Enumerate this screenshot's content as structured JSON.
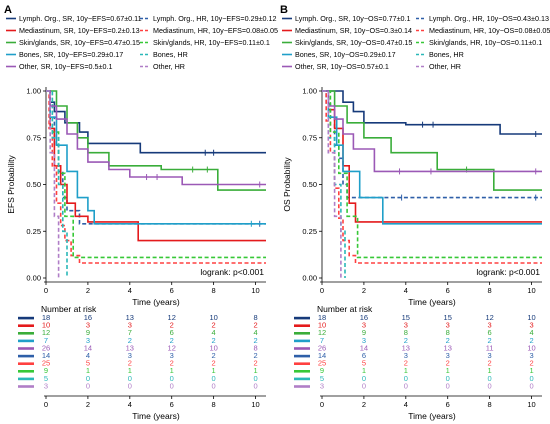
{
  "figure": {
    "series_meta": [
      {
        "key": "lymph_sr",
        "color": "#163a7a",
        "dash": false
      },
      {
        "key": "lymph_hr",
        "color": "#2e5fa8",
        "dash": true
      },
      {
        "key": "med_sr",
        "color": "#e41a1c",
        "dash": false
      },
      {
        "key": "med_hr",
        "color": "#ff4040",
        "dash": true
      },
      {
        "key": "skin_sr",
        "color": "#3aad3a",
        "dash": false
      },
      {
        "key": "skin_hr",
        "color": "#37c837",
        "dash": true
      },
      {
        "key": "bones_sr",
        "color": "#1f9fc9",
        "dash": false
      },
      {
        "key": "bones_hr",
        "color": "#2ab8b8",
        "dash": true
      },
      {
        "key": "other_sr",
        "color": "#9b59b6",
        "dash": false
      },
      {
        "key": "other_hr",
        "color": "#b07ec7",
        "dash": true
      }
    ],
    "risk_order": [
      "lymph_sr",
      "med_sr",
      "skin_sr",
      "bones_sr",
      "other_sr",
      "lymph_hr",
      "med_hr",
      "skin_hr",
      "bones_hr",
      "other_hr"
    ]
  },
  "chart_data": [
    {
      "panel": "A",
      "type": "line",
      "ylabel": "EFS Probability",
      "xlabel": "Time (years)",
      "xlim": [
        0,
        10.5
      ],
      "ylim": [
        0,
        1
      ],
      "xticks": [
        "0",
        "2",
        "4",
        "6",
        "8",
        "10"
      ],
      "yticks": [
        "0.00",
        "0.25",
        "0.50",
        "0.75",
        "1.00"
      ],
      "annotation": "logrank: p<0.001",
      "risk_title": "Number at risk",
      "risk_times": [
        0,
        2,
        4,
        6,
        8,
        10
      ],
      "legend": [
        "Lymph. Org., SR, 10y−EFS=0.67±0.11",
        "Lymph. Org., HR, 10y−EFS=0.29±0.12",
        "Mediastinum, SR, 10y−EFS=0.2±0.13",
        "Mediastinum, HR, 10y−EFS=0.08±0.05",
        "Skin/glands, SR, 10y−EFS=0.47±0.15",
        "Skin/glands, HR, 10y−EFS=0.11±0.1",
        "Bones, SR, 10y−EFS=0.29±0.17",
        "Bones, HR",
        "Other, SR, 10y−EFS=0.5±0.1",
        "Other, HR"
      ],
      "series": [
        {
          "key": "lymph_sr",
          "x": [
            0,
            0.2,
            0.4,
            0.9,
            1.6,
            2.0,
            4.5,
            10.5
          ],
          "y": [
            1,
            0.94,
            0.89,
            0.83,
            0.78,
            0.72,
            0.67,
            0.67
          ],
          "censor": [
            [
              7.6,
              0.67
            ],
            [
              8.0,
              0.67
            ]
          ]
        },
        {
          "key": "lymph_hr",
          "x": [
            0,
            0.2,
            0.4,
            0.6,
            0.8,
            1.0,
            1.6,
            10.5
          ],
          "y": [
            1,
            0.86,
            0.71,
            0.57,
            0.43,
            0.36,
            0.29,
            0.29
          ],
          "censor": [
            [
              10.2,
              0.29
            ]
          ]
        },
        {
          "key": "med_sr",
          "x": [
            0,
            0.2,
            0.4,
            0.7,
            1.0,
            1.4,
            2.0,
            4.4,
            10.5
          ],
          "y": [
            1,
            0.8,
            0.6,
            0.5,
            0.4,
            0.33,
            0.3,
            0.2,
            0.2
          ],
          "censor": []
        },
        {
          "key": "med_hr",
          "x": [
            0,
            0.15,
            0.3,
            0.5,
            0.7,
            0.9,
            1.2,
            1.6,
            10.5
          ],
          "y": [
            1,
            0.8,
            0.6,
            0.4,
            0.28,
            0.2,
            0.12,
            0.08,
            0.08
          ],
          "censor": []
        },
        {
          "key": "skin_sr",
          "x": [
            0,
            0.5,
            1.0,
            1.5,
            2.0,
            3.0,
            5.5,
            8.2,
            10.5
          ],
          "y": [
            1,
            0.92,
            0.83,
            0.75,
            0.67,
            0.6,
            0.58,
            0.47,
            0.47
          ],
          "censor": [
            [
              7.0,
              0.58
            ],
            [
              7.7,
              0.58
            ]
          ]
        },
        {
          "key": "skin_hr",
          "x": [
            0,
            0.3,
            0.6,
            0.9,
            1.3,
            10.5
          ],
          "y": [
            1,
            0.78,
            0.56,
            0.33,
            0.11,
            0.11
          ],
          "censor": []
        },
        {
          "key": "bones_sr",
          "x": [
            0,
            0.2,
            0.5,
            1.0,
            1.5,
            2.0,
            2.3,
            10.5
          ],
          "y": [
            1,
            0.86,
            0.71,
            0.57,
            0.43,
            0.36,
            0.29,
            0.29
          ],
          "censor": [
            [
              9.8,
              0.29
            ]
          ]
        },
        {
          "key": "bones_hr",
          "x": [
            0,
            0.3,
            0.6,
            0.8,
            1.0
          ],
          "y": [
            1,
            0.75,
            0.5,
            0.25,
            0.0
          ],
          "censor": []
        },
        {
          "key": "other_sr",
          "x": [
            0,
            0.2,
            0.5,
            1.0,
            1.5,
            2.0,
            3.0,
            4.0,
            6.5,
            10.5
          ],
          "y": [
            1,
            0.92,
            0.85,
            0.77,
            0.69,
            0.62,
            0.58,
            0.54,
            0.5,
            0.5
          ],
          "censor": [
            [
              4.8,
              0.54
            ],
            [
              5.3,
              0.54
            ],
            [
              10.2,
              0.5
            ]
          ]
        },
        {
          "key": "other_hr",
          "x": [
            0,
            0.2,
            0.4,
            0.6
          ],
          "y": [
            1,
            0.67,
            0.33,
            0.0
          ],
          "censor": []
        }
      ],
      "risk": [
        [
          "18",
          "16",
          "13",
          "12",
          "10",
          "8"
        ],
        [
          "10",
          "3",
          "3",
          "2",
          "2",
          "2"
        ],
        [
          "12",
          "9",
          "7",
          "6",
          "4",
          "4"
        ],
        [
          "7",
          "3",
          "2",
          "2",
          "2",
          "2"
        ],
        [
          "26",
          "14",
          "13",
          "12",
          "10",
          "8"
        ],
        [
          "14",
          "4",
          "3",
          "3",
          "2",
          "2"
        ],
        [
          "25",
          "5",
          "2",
          "2",
          "2",
          "2"
        ],
        [
          "9",
          "1",
          "1",
          "1",
          "1",
          "1"
        ],
        [
          "5",
          "0",
          "0",
          "0",
          "0",
          "0"
        ],
        [
          "3",
          "0",
          "0",
          "0",
          "0",
          "0"
        ]
      ]
    },
    {
      "panel": "B",
      "type": "line",
      "ylabel": "OS Probability",
      "xlabel": "Time (years)",
      "xlim": [
        0,
        10.5
      ],
      "ylim": [
        0,
        1
      ],
      "xticks": [
        "0",
        "2",
        "4",
        "6",
        "8",
        "10"
      ],
      "yticks": [
        "0.00",
        "0.25",
        "0.50",
        "0.75",
        "1.00"
      ],
      "annotation": "logrank: p<0.001",
      "risk_title": "Number at risk",
      "risk_times": [
        0,
        2,
        4,
        6,
        8,
        10
      ],
      "legend": [
        "Lymph. Org., SR, 10y−OS=0.77±0.1",
        "Lymph. Org., HR, 10y−OS=0.43±0.13",
        "Mediastinum, SR, 10y−OS=0.3±0.14",
        "Mediastinum, HR, 10y−OS=0.08±0.05",
        "Skin/glands, SR, 10y−OS=0.47±0.15",
        "Skin/glands, HR, 10y−OS=0.11±0.1",
        "Bones, SR, 10y−OS=0.29±0.17",
        "Bones, HR",
        "Other, SR, 10y−OS=0.57±0.1",
        "Other, HR"
      ],
      "series": [
        {
          "key": "lymph_sr",
          "x": [
            0,
            1.0,
            1.5,
            2.0,
            4.0,
            8.5,
            10.5
          ],
          "y": [
            1,
            0.94,
            0.89,
            0.83,
            0.82,
            0.77,
            0.77
          ],
          "censor": [
            [
              4.8,
              0.82
            ],
            [
              5.3,
              0.82
            ],
            [
              10.2,
              0.77
            ]
          ]
        },
        {
          "key": "lymph_hr",
          "x": [
            0,
            0.2,
            0.4,
            0.6,
            0.8,
            1.0,
            1.2,
            10.5
          ],
          "y": [
            1,
            0.93,
            0.86,
            0.71,
            0.64,
            0.5,
            0.43,
            0.43
          ],
          "censor": [
            [
              3.8,
              0.43
            ],
            [
              10.2,
              0.43
            ]
          ]
        },
        {
          "key": "med_sr",
          "x": [
            0,
            0.3,
            0.6,
            1.0,
            1.3,
            1.6,
            10.5
          ],
          "y": [
            1,
            0.9,
            0.8,
            0.6,
            0.4,
            0.3,
            0.3
          ],
          "censor": []
        },
        {
          "key": "med_hr",
          "x": [
            0,
            0.2,
            0.4,
            0.6,
            0.8,
            1.0,
            1.3,
            1.6,
            10.5
          ],
          "y": [
            1,
            0.84,
            0.68,
            0.48,
            0.32,
            0.2,
            0.12,
            0.08,
            0.08
          ],
          "censor": []
        },
        {
          "key": "skin_sr",
          "x": [
            0,
            0.6,
            1.2,
            2.0,
            3.3,
            5.5,
            8.2,
            10.5
          ],
          "y": [
            1,
            0.92,
            0.83,
            0.75,
            0.67,
            0.58,
            0.47,
            0.47
          ],
          "censor": [
            [
              6.9,
              0.58
            ]
          ]
        },
        {
          "key": "skin_hr",
          "x": [
            0,
            0.4,
            0.8,
            1.2,
            1.7,
            10.5
          ],
          "y": [
            1,
            0.78,
            0.56,
            0.33,
            0.11,
            0.11
          ],
          "censor": []
        },
        {
          "key": "bones_sr",
          "x": [
            0,
            0.3,
            0.7,
            1.0,
            1.8,
            2.9,
            10.5
          ],
          "y": [
            1,
            0.86,
            0.71,
            0.57,
            0.43,
            0.29,
            0.29
          ],
          "censor": []
        },
        {
          "key": "bones_hr",
          "x": [
            0,
            0.3,
            0.6,
            0.9,
            1.1
          ],
          "y": [
            1,
            0.75,
            0.5,
            0.25,
            0.0
          ],
          "censor": []
        },
        {
          "key": "other_sr",
          "x": [
            0,
            0.3,
            0.6,
            1.0,
            1.5,
            2.5,
            10.5
          ],
          "y": [
            1,
            0.92,
            0.85,
            0.77,
            0.69,
            0.57,
            0.57
          ],
          "censor": [
            [
              3.7,
              0.57
            ],
            [
              5.2,
              0.57
            ],
            [
              10.2,
              0.57
            ]
          ]
        },
        {
          "key": "other_hr",
          "x": [
            0,
            0.3,
            0.6,
            0.9
          ],
          "y": [
            1,
            0.67,
            0.33,
            0.0
          ],
          "censor": []
        }
      ],
      "risk": [
        [
          "18",
          "16",
          "15",
          "15",
          "12",
          "10"
        ],
        [
          "10",
          "3",
          "3",
          "3",
          "3",
          "3"
        ],
        [
          "12",
          "9",
          "8",
          "8",
          "6",
          "4"
        ],
        [
          "7",
          "3",
          "2",
          "2",
          "2",
          "2"
        ],
        [
          "26",
          "14",
          "13",
          "13",
          "11",
          "10"
        ],
        [
          "14",
          "6",
          "3",
          "3",
          "3",
          "3"
        ],
        [
          "25",
          "5",
          "2",
          "2",
          "2",
          "2"
        ],
        [
          "9",
          "1",
          "1",
          "1",
          "1",
          "1"
        ],
        [
          "5",
          "0",
          "0",
          "0",
          "0",
          "0"
        ],
        [
          "3",
          "0",
          "0",
          "0",
          "0",
          "0"
        ]
      ]
    }
  ]
}
